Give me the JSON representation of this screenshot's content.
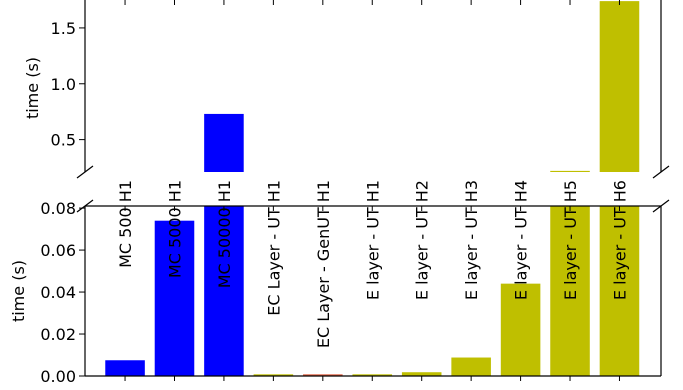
{
  "chart_data": {
    "type": "bar",
    "broken_axis": true,
    "ylabel": "time (s)",
    "categories": [
      "MC 500 H1",
      "MC 5000 H1",
      "MC 50000 H1",
      "EC Layer - UT H1",
      "EC Layer - GenUT H1",
      "E layer - UT H1",
      "E layer - UT H2",
      "E layer - UT H3",
      "E layer - UT H4",
      "E layer - UT H5",
      "E layer - UT H6"
    ],
    "values": [
      0.0075,
      0.074,
      0.73,
      0.0008,
      0.0008,
      0.0008,
      0.0018,
      0.0088,
      0.044,
      0.22,
      1.74
    ],
    "colors": [
      "#0000ff",
      "#0000ff",
      "#0000ff",
      "#bfbf00",
      "#e06040",
      "#bfbf00",
      "#bfbf00",
      "#bfbf00",
      "#bfbf00",
      "#bfbf00",
      "#bfbf00"
    ],
    "upper_panel": {
      "ylim": [
        0.21,
        1.75
      ],
      "yticks": [
        0.5,
        1.0,
        1.5
      ],
      "ytick_labels": [
        "0.5",
        "1.0",
        "1.5"
      ]
    },
    "lower_panel": {
      "ylim": [
        0.0,
        0.081
      ],
      "yticks": [
        0.0,
        0.02,
        0.04,
        0.06,
        0.08
      ],
      "ytick_labels": [
        "0.00",
        "0.02",
        "0.04",
        "0.06",
        "0.08"
      ]
    },
    "grid": false,
    "legend": "none"
  }
}
